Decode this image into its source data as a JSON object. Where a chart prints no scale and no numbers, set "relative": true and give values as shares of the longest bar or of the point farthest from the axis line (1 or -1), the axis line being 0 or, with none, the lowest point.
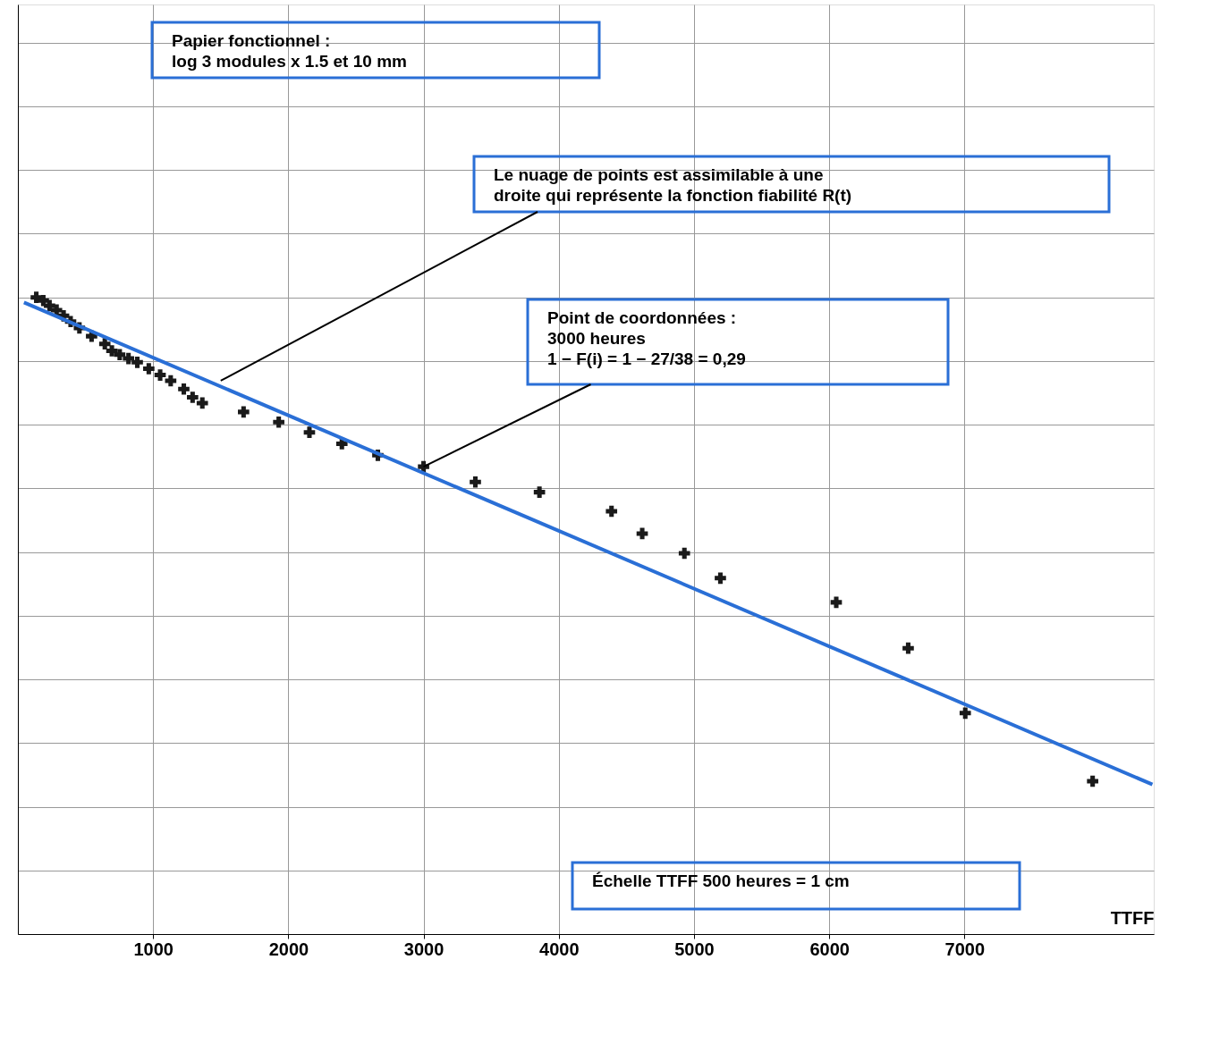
{
  "chart_data": {
    "type": "scatter",
    "xlabel": "TTFF",
    "relative": true,
    "grid": true,
    "xlim": [
      0,
      8400
    ],
    "xticks": [
      1000,
      2000,
      3000,
      4000,
      5000,
      6000,
      7000
    ],
    "series": [
      {
        "type": "scatter",
        "marker": "cross",
        "color": "#1a1a1a",
        "x": [
          136,
          188,
          234,
          286,
          338,
          390,
          455,
          545,
          643,
          695,
          753,
          818,
          883,
          968,
          1052,
          1130,
          1227,
          1292,
          1364,
          1669,
          1929,
          2156,
          2396,
          2662,
          3000,
          3383,
          3857,
          4390,
          4617,
          4929,
          5195,
          6052,
          6584,
          7006,
          7948
        ],
        "values": [
          1.0,
          0.995,
          0.987,
          0.98,
          0.971,
          0.962,
          0.952,
          0.939,
          0.927,
          0.916,
          0.91,
          0.904,
          0.898,
          0.888,
          0.878,
          0.869,
          0.856,
          0.843,
          0.834,
          0.82,
          0.804,
          0.788,
          0.77,
          0.752,
          0.734,
          0.71,
          0.694,
          0.664,
          0.629,
          0.598,
          0.559,
          0.521,
          0.449,
          0.347,
          0.24
        ]
      },
      {
        "type": "line",
        "marker": "none",
        "color": "#2a6fd6",
        "x": [
          45,
          8390
        ],
        "values": [
          0.992,
          0.235
        ]
      }
    ],
    "annotations": [
      "Papier fonctionnel :\nlog 3 modules x 1.5 et 10 mm",
      {
        "text": "Le nuage de points est assimilable à une\ndroite qui représente la fonction fiabilité R(t)",
        "x": 1500,
        "y": 0.869
      },
      {
        "text": "Point de coordonnées :\n3000 heures\n1 − F(i) = 1 − 27/38 = 0,29",
        "x": 3000,
        "y": 0.734
      },
      "Échelle TTFF 500 heures = 1 cm"
    ]
  }
}
